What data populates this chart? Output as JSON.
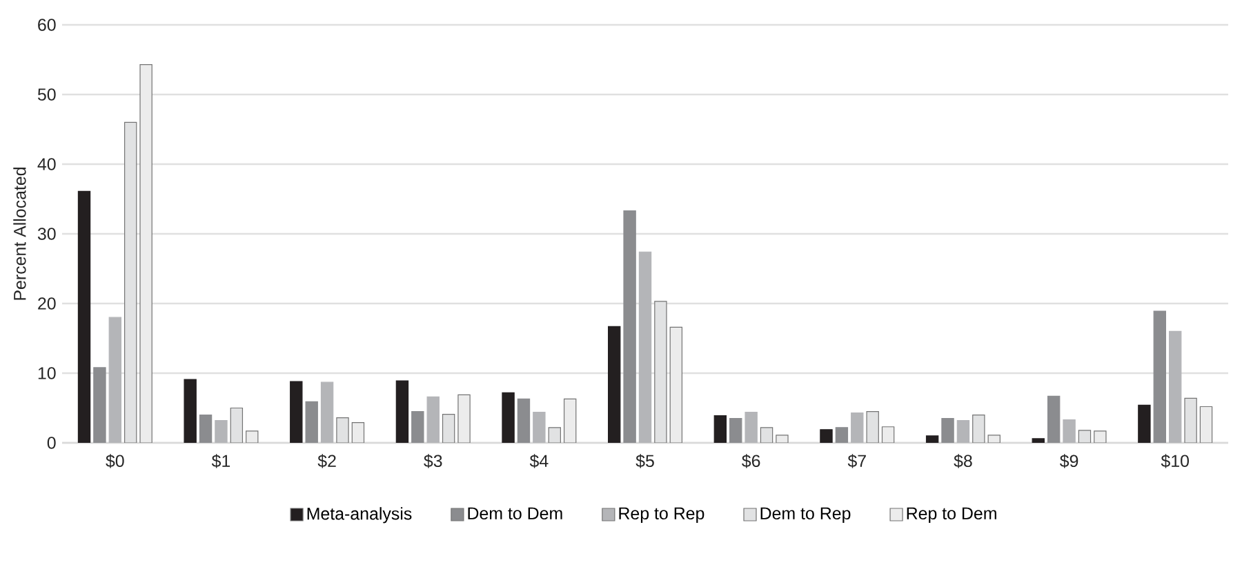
{
  "chart_data": {
    "type": "bar",
    "ylabel": "Percent Allocated",
    "categories": [
      "$0",
      "$1",
      "$2",
      "$3",
      "$4",
      "$5",
      "$6",
      "$7",
      "$8",
      "$9",
      "$10"
    ],
    "series": [
      {
        "name": "Meta-analysis",
        "color": "#231f20",
        "values": [
          36.1,
          9.1,
          8.8,
          8.9,
          7.2,
          16.7,
          3.9,
          1.9,
          1.0,
          0.6,
          5.4
        ]
      },
      {
        "name": "Dem to Dem",
        "color": "#8b8c8f",
        "values": [
          10.8,
          4.0,
          5.9,
          4.5,
          6.3,
          33.3,
          3.5,
          2.2,
          3.5,
          6.7,
          18.9
        ]
      },
      {
        "name": "Rep to Rep",
        "color": "#b4b5b8",
        "values": [
          18.0,
          3.2,
          8.7,
          6.6,
          4.4,
          27.4,
          4.4,
          4.3,
          3.2,
          3.3,
          16.0
        ]
      },
      {
        "name": "Dem to Rep",
        "color": "#e1e2e3",
        "values": [
          46.0,
          5.0,
          3.6,
          4.1,
          2.2,
          20.3,
          2.2,
          4.5,
          4.0,
          1.8,
          6.4
        ]
      },
      {
        "name": "Rep to Dem",
        "color": "#ececec",
        "values": [
          54.3,
          1.7,
          2.9,
          6.9,
          6.3,
          16.6,
          1.1,
          2.3,
          1.1,
          1.7,
          5.2
        ]
      }
    ],
    "ylim": [
      0,
      60
    ],
    "yticks": [
      0,
      10,
      20,
      30,
      40,
      50,
      60
    ],
    "grid": "y",
    "legend": "bottom"
  }
}
